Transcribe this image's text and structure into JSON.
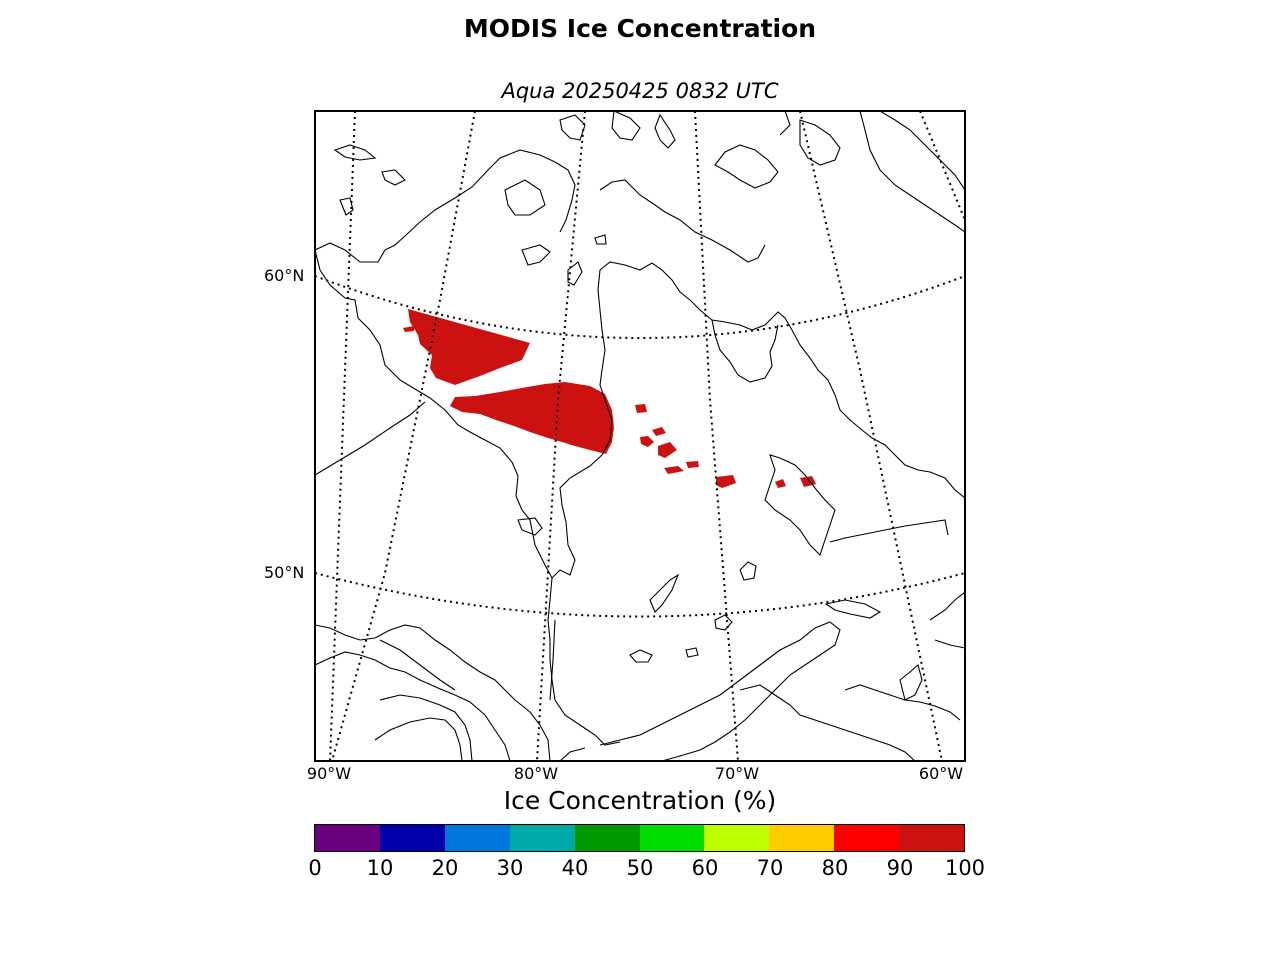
{
  "title": "MODIS Ice Concentration",
  "subtitle": "Aqua 20250425 0832 UTC",
  "map": {
    "lat_labels": [
      "60°N",
      "50°N"
    ],
    "lon_labels": [
      "90°W",
      "80°W",
      "70°W",
      "60°W"
    ],
    "ice_color": "#cc1111"
  },
  "colorbar": {
    "label": "Ice Concentration (%)",
    "ticks": [
      "0",
      "10",
      "20",
      "30",
      "40",
      "50",
      "60",
      "70",
      "80",
      "90",
      "100"
    ],
    "colors": [
      "#6a0080",
      "#0000aa",
      "#0077dd",
      "#00aaaa",
      "#009900",
      "#00dd00",
      "#bbff00",
      "#ffcc00",
      "#ff0000",
      "#cc1111"
    ]
  }
}
